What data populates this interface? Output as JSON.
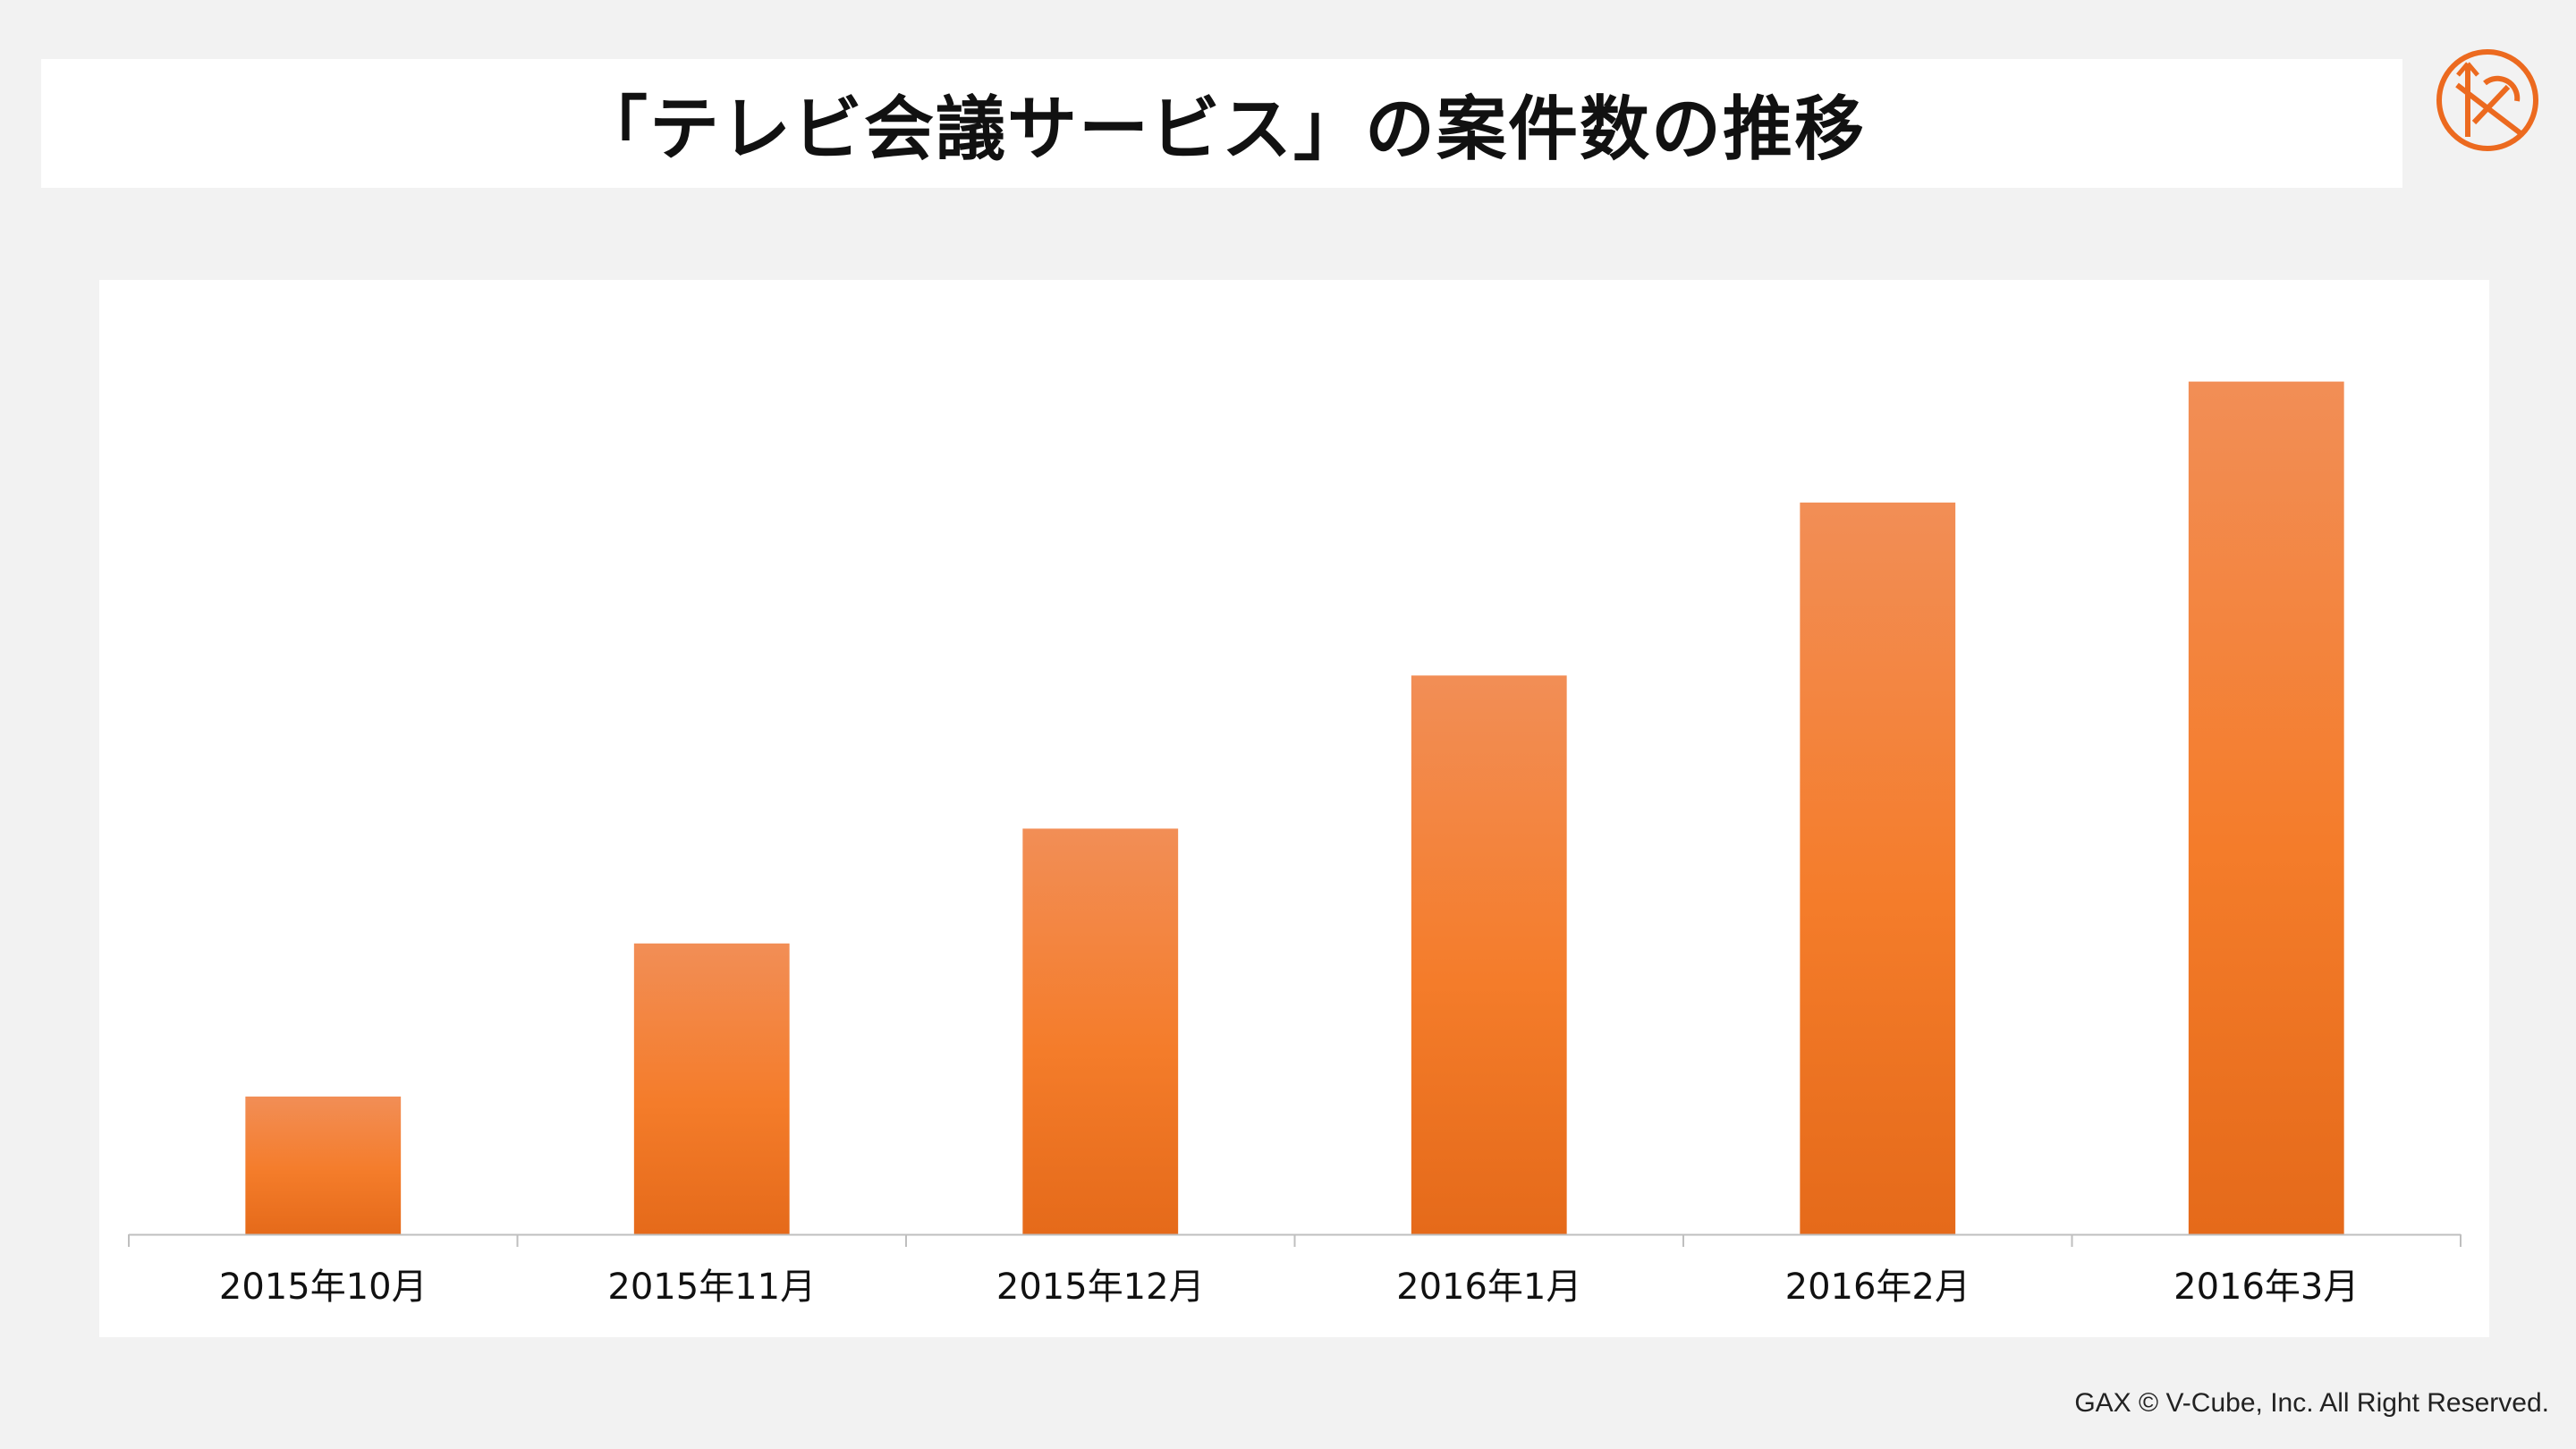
{
  "slide": {
    "title": "「テレビ会議サービス」の案件数の推移",
    "footer": "GAX © V-Cube, Inc. All Right Reserved.",
    "logo_icon": "gax-logo-icon",
    "accent_color": "#ec6a1f"
  },
  "chart_data": {
    "type": "bar",
    "categories": [
      "2015年10月",
      "2015年11月",
      "2015年12月",
      "2016年1月",
      "2016年2月",
      "2016年3月"
    ],
    "values": [
      9,
      19,
      26.5,
      36.5,
      47.8,
      55.7
    ],
    "ylim": [
      0,
      60
    ],
    "grid": false,
    "legend": "none",
    "bar_color_top": "#f28e56",
    "bar_color_mid": "#f47c2a",
    "bar_color_bottom": "#e56a1a"
  }
}
